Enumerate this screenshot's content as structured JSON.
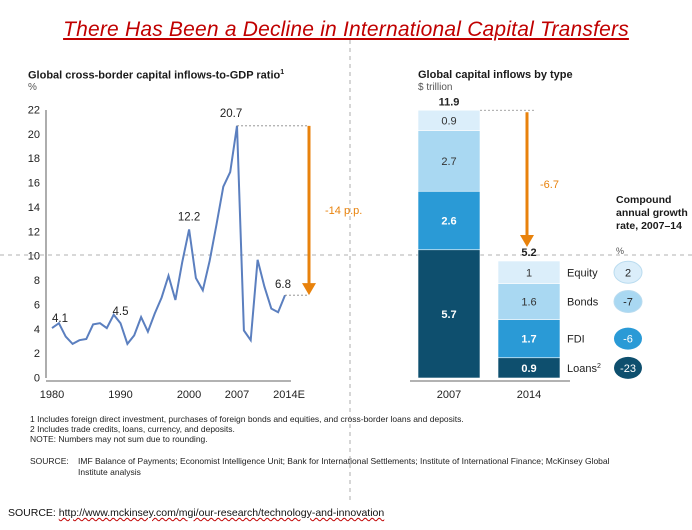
{
  "title": "There Has Been a Decline in International Capital Transfers",
  "left_chart_title": "Global cross-border capital inflows-to-GDP ratio",
  "left_chart_title_sup": "1",
  "left_chart_unit": "%",
  "right_chart_title": "Global capital inflows by type",
  "right_chart_unit": "$ trillion",
  "growth_header": "Compound annual growth rate, 2007–14",
  "growth_unit": "%",
  "notes": [
    "1  Includes foreign direct investment, purchases of foreign bonds and equities, and cross-border loans and deposits.",
    "2  Includes trade credits, loans, currency, and deposits.",
    "NOTE: Numbers may not sum due to rounding."
  ],
  "source_label": "SOURCE:",
  "source_text": "IMF Balance of Payments; Economist Intelligence Unit; Bank for International Settlements; Institute of International Finance; McKinsey Global Institute analysis",
  "footer_label": "SOURCE: ",
  "footer_url": "http://www.mckinsey.com/mgi/our-research/technology-and-innovation",
  "colors": {
    "line": "#5b7fbf",
    "arrow": "#e8820c",
    "equity": "#dbeefa",
    "bonds": "#a9d8f2",
    "fdi": "#2a9ad6",
    "loans": "#0e4f6e"
  },
  "chart_data": [
    {
      "type": "line",
      "title": "Global cross-border capital inflows-to-GDP ratio",
      "ylabel": "%",
      "ylim": [
        0,
        22
      ],
      "yticks": [
        0,
        2,
        4,
        6,
        8,
        10,
        12,
        14,
        16,
        18,
        20,
        22
      ],
      "xticks": [
        "1980",
        "1990",
        "2000",
        "2007",
        "2014E"
      ],
      "xlim": [
        1980,
        2014
      ],
      "grid": false,
      "x": [
        1980,
        1981,
        1982,
        1983,
        1984,
        1985,
        1986,
        1987,
        1988,
        1989,
        1990,
        1991,
        1992,
        1993,
        1994,
        1995,
        1996,
        1997,
        1998,
        1999,
        2000,
        2001,
        2002,
        2003,
        2004,
        2005,
        2006,
        2007,
        2008,
        2009,
        2010,
        2011,
        2012,
        2013,
        2014
      ],
      "y": [
        4.1,
        4.5,
        3.4,
        2.8,
        3.1,
        3.2,
        4.4,
        4.5,
        4.1,
        5.2,
        4.5,
        2.8,
        3.5,
        5.0,
        3.8,
        5.3,
        6.6,
        8.4,
        6.4,
        9.5,
        12.2,
        8.2,
        7.2,
        9.6,
        12.6,
        15.7,
        16.9,
        20.7,
        3.9,
        3.1,
        9.7,
        7.5,
        5.7,
        5.4,
        6.8
      ],
      "data_labels": [
        {
          "x": 1980,
          "y": 4.1,
          "text": "4.1"
        },
        {
          "x": 1990,
          "y": 4.5,
          "text": "4.5"
        },
        {
          "x": 2000,
          "y": 12.2,
          "text": "12.2"
        },
        {
          "x": 2007,
          "y": 20.7,
          "text": "20.7"
        },
        {
          "x": 2014,
          "y": 6.8,
          "text": "6.8"
        }
      ],
      "annotation": "-14 p.p."
    },
    {
      "type": "bar",
      "stacked": true,
      "title": "Global capital inflows by type",
      "ylabel": "$ trillion",
      "categories": [
        "2007",
        "2014"
      ],
      "totals": [
        "11.9",
        "5.2"
      ],
      "series": [
        {
          "name": "Loans",
          "superscript": "2",
          "values": [
            5.7,
            0.9
          ],
          "growth": "-23"
        },
        {
          "name": "FDI",
          "values": [
            2.6,
            1.7
          ],
          "growth": "-6"
        },
        {
          "name": "Bonds",
          "values": [
            2.7,
            1.6
          ],
          "growth": "-7"
        },
        {
          "name": "Equity",
          "values": [
            0.9,
            1.0
          ],
          "growth": "2"
        }
      ],
      "annotation": "-6.7"
    }
  ]
}
